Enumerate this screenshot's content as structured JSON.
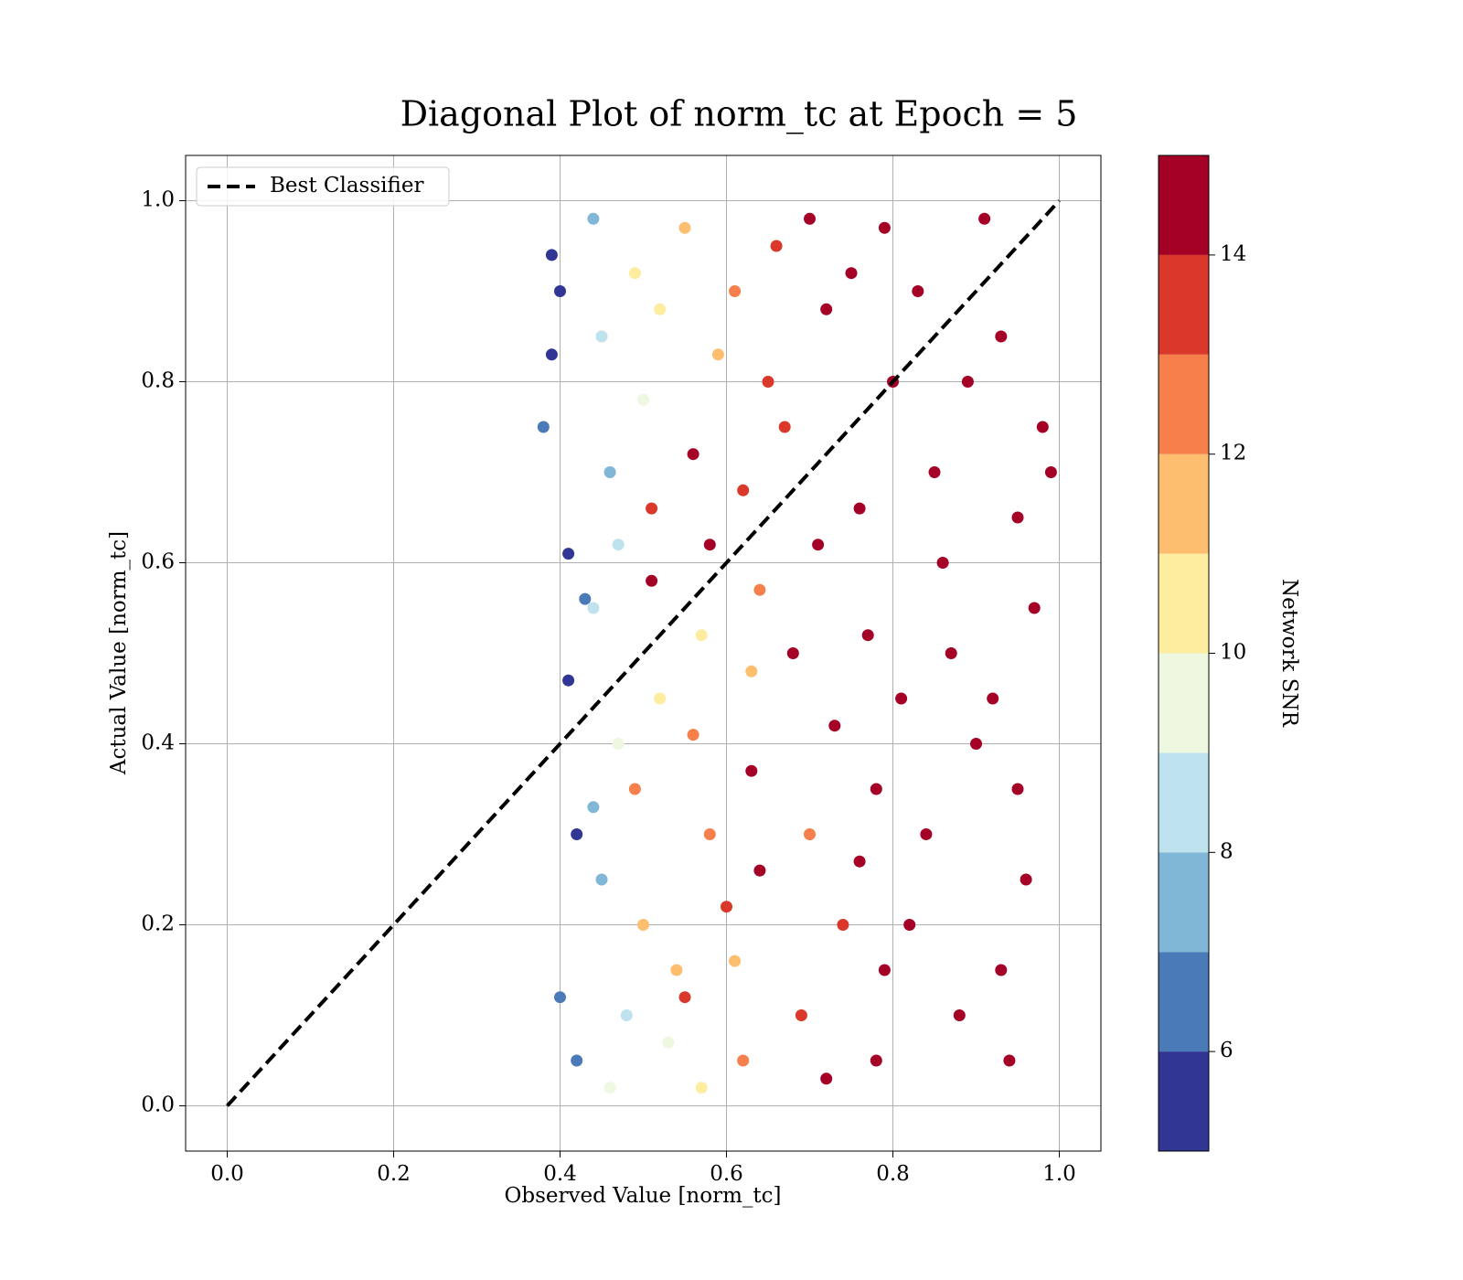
{
  "chart_data": {
    "type": "scatter",
    "title": "Diagonal Plot of norm_tc at Epoch = 5",
    "xlabel": "Observed Value [norm_tc]",
    "ylabel": "Actual Value [norm_tc]",
    "xlim": [
      -0.05,
      1.05
    ],
    "ylim": [
      -0.05,
      1.05
    ],
    "xticks": [
      {
        "value": 0,
        "label": "0.0"
      },
      0.2,
      0.4,
      0.6,
      0.8,
      {
        "value": 1,
        "label": "1.0"
      }
    ],
    "yticks": [
      {
        "value": 0,
        "label": "0.0"
      },
      0.2,
      0.4,
      0.6,
      0.8,
      {
        "value": 1,
        "label": "1.0"
      }
    ],
    "grid": true,
    "legend": "upper left",
    "line": {
      "name": "Best Classifier",
      "color": "#000000",
      "x": [
        0,
        1
      ],
      "y": [
        0,
        1
      ]
    },
    "points": {
      "x": [
        0.39,
        0.4,
        0.41,
        0.38,
        0.42,
        0.4,
        0.41,
        0.39,
        0.42,
        0.43,
        0.44,
        0.45,
        0.46,
        0.44,
        0.47,
        0.45,
        0.48,
        0.46,
        0.44,
        0.47,
        0.49,
        0.5,
        0.51,
        0.52,
        0.5,
        0.53,
        0.49,
        0.52,
        0.51,
        0.54,
        0.55,
        0.56,
        0.57,
        0.58,
        0.55,
        0.59,
        0.56,
        0.58,
        0.57,
        0.6,
        0.61,
        0.62,
        0.63,
        0.64,
        0.62,
        0.65,
        0.63,
        0.64,
        0.61,
        0.66,
        0.67,
        0.68,
        0.7,
        0.72,
        0.69,
        0.71,
        0.73,
        0.7,
        0.74,
        0.72,
        0.76,
        0.78,
        0.75,
        0.79,
        0.77,
        0.8,
        0.78,
        0.76,
        0.81,
        0.79,
        0.83,
        0.85,
        0.87,
        0.84,
        0.88,
        0.86,
        0.9,
        0.82,
        0.89,
        0.91,
        0.93,
        0.95,
        0.92,
        0.96,
        0.94,
        0.97,
        0.93,
        0.98,
        0.95,
        0.99
      ],
      "y": [
        0.94,
        0.9,
        0.61,
        0.75,
        0.3,
        0.12,
        0.47,
        0.83,
        0.05,
        0.56,
        0.98,
        0.85,
        0.7,
        0.55,
        0.4,
        0.25,
        0.1,
        0.02,
        0.33,
        0.62,
        0.92,
        0.78,
        0.58,
        0.45,
        0.2,
        0.07,
        0.35,
        0.88,
        0.66,
        0.15,
        0.97,
        0.72,
        0.52,
        0.3,
        0.12,
        0.83,
        0.41,
        0.62,
        0.02,
        0.22,
        0.9,
        0.68,
        0.48,
        0.26,
        0.05,
        0.8,
        0.37,
        0.57,
        0.16,
        0.95,
        0.75,
        0.5,
        0.3,
        0.88,
        0.1,
        0.62,
        0.42,
        0.98,
        0.2,
        0.03,
        0.66,
        0.35,
        0.92,
        0.15,
        0.52,
        0.8,
        0.05,
        0.27,
        0.45,
        0.97,
        0.9,
        0.7,
        0.5,
        0.3,
        0.1,
        0.6,
        0.4,
        0.2,
        0.8,
        0.98,
        0.85,
        0.65,
        0.45,
        0.25,
        0.05,
        0.55,
        0.15,
        0.75,
        0.35,
        0.7
      ],
      "snr": [
        5.2,
        5.5,
        5.8,
        6.3,
        5.1,
        6.8,
        5.4,
        5.3,
        6.0,
        6.5,
        7.5,
        8.3,
        7.8,
        8.8,
        9.4,
        7.2,
        8.1,
        9.6,
        7.9,
        8.5,
        10.3,
        9.2,
        14.5,
        10.8,
        11.4,
        9.7,
        12.6,
        10.1,
        13.5,
        11.2,
        11.6,
        14.2,
        10.5,
        12.4,
        13.7,
        11.1,
        12.9,
        14.6,
        10.9,
        13.2,
        12.2,
        13.8,
        11.8,
        14.4,
        12.7,
        13.1,
        14.8,
        12.3,
        11.5,
        13.6,
        13.9,
        14.7,
        12.8,
        14.9,
        13.4,
        14.3,
        15,
        14.1,
        13.3,
        14.6,
        14.8,
        14.5,
        15,
        14.2,
        15,
        15,
        14.7,
        14.9,
        15,
        15,
        15,
        15,
        15,
        15,
        15,
        15,
        15,
        15,
        15,
        15,
        15,
        15,
        15,
        15,
        15,
        15,
        15,
        15,
        15,
        15
      ]
    },
    "colorbar": {
      "label": "Network SNR",
      "lim": [
        5,
        15
      ],
      "ticks": [
        6,
        8,
        10,
        12,
        14
      ],
      "bounds": [
        5,
        6,
        7,
        8,
        9,
        10,
        11,
        12,
        13,
        14,
        15
      ],
      "colors": [
        "#313695",
        "#4a7ab7",
        "#80b6d6",
        "#bee3ee",
        "#eef7e0",
        "#feec9f",
        "#fdbe70",
        "#f67f4b",
        "#da382a",
        "#a50026"
      ]
    }
  }
}
